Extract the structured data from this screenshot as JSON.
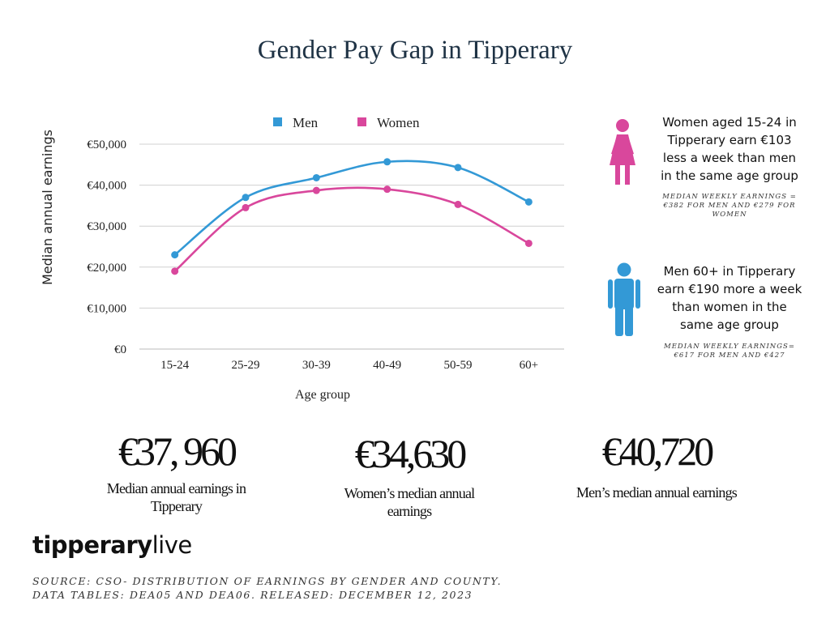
{
  "title": "Gender Pay Gap in Tipperary",
  "chart_data": {
    "type": "line",
    "categories": [
      "15-24",
      "25-29",
      "30-39",
      "40-49",
      "50-59",
      "60+"
    ],
    "series": [
      {
        "name": "Men",
        "color": "#3399d6",
        "values": [
          23000,
          37000,
          41800,
          45700,
          44300,
          35900
        ]
      },
      {
        "name": "Women",
        "color": "#d9479c",
        "values": [
          19000,
          34500,
          38700,
          39000,
          35300,
          25800
        ]
      }
    ],
    "xlabel": "Age group",
    "ylabel": "Median annual earnings",
    "ylim": [
      0,
      50000
    ],
    "yticks": [
      "€0",
      "€10,000",
      "€20,000",
      "€30,000",
      "€40,000",
      "€50,000"
    ],
    "grid": true,
    "legend": "top-center"
  },
  "callouts": [
    {
      "icon": "woman-icon",
      "color": "#d9479c",
      "lines": [
        "Women aged 15-24 in",
        "Tipperary earn €103",
        "less a week than men",
        "in the same age group"
      ],
      "note_lines": [
        "Median weekly earnings =",
        "€382 for men and €279 for",
        "women"
      ]
    },
    {
      "icon": "man-icon",
      "color": "#3399d6",
      "lines": [
        "Men 60+ in Tipperary",
        "earn €190 more a week",
        "than women in the",
        "same age group"
      ],
      "note_lines": [
        "Median weekly earnings=",
        "€617 for men and €427"
      ]
    }
  ],
  "stats": [
    {
      "value": "€37, 960",
      "label_lines": [
        "Median annual earnings in",
        "Tipperary"
      ]
    },
    {
      "value": "€34,630",
      "label_lines": [
        "Women’s median annual",
        "earnings"
      ]
    },
    {
      "value": "€40,720",
      "label_lines": [
        "Men’s median annual earnings"
      ]
    }
  ],
  "logo": {
    "bold": "tipperary",
    "light": "live"
  },
  "source_lines": [
    "Source: CSO- Distribution of Earnings by Gender and County.",
    "Data Tables: DEA05 and DEA06. Released: December 12, 2023"
  ]
}
